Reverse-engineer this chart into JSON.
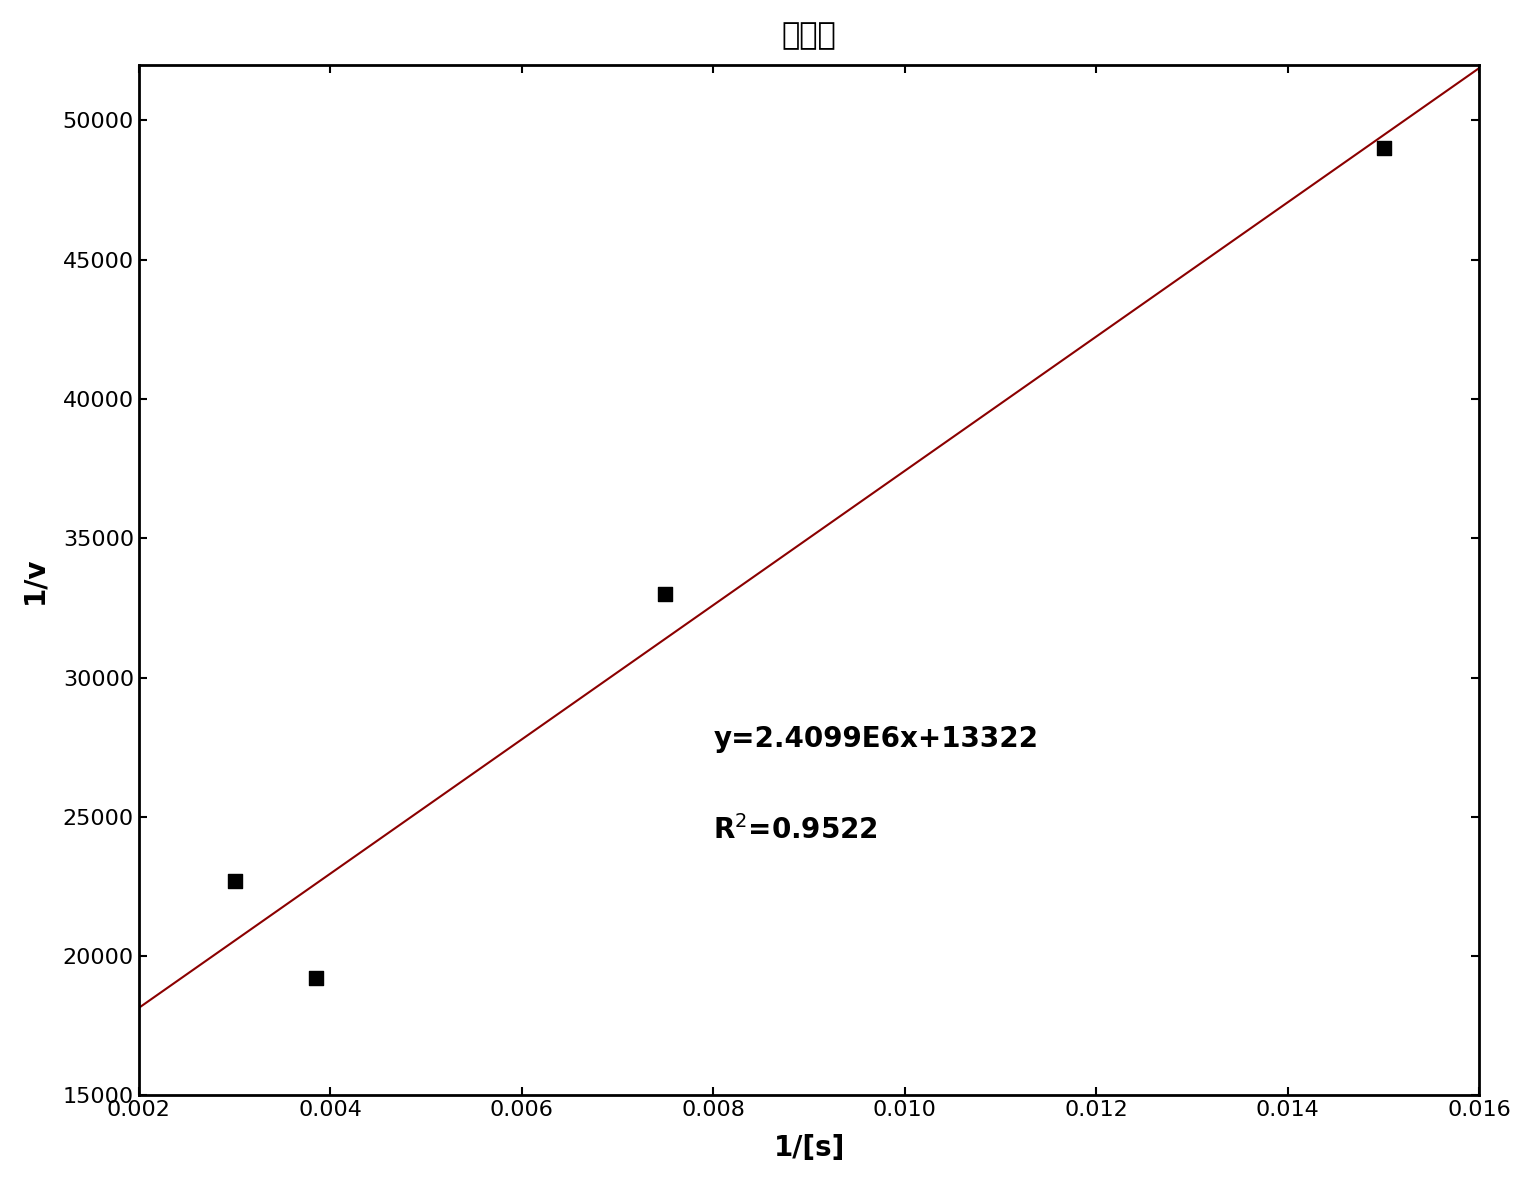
{
  "title": "突变型",
  "xlabel": "1/[s]",
  "ylabel": "1/v",
  "x_data": [
    0.003,
    0.00385,
    0.0075,
    0.015
  ],
  "y_data": [
    22700,
    19200,
    33000,
    49000
  ],
  "slope": 2409900,
  "intercept": 13322,
  "r_squared": 0.9522,
  "line_x_start": 0.002,
  "line_x_end": 0.016,
  "xlim": [
    0.002,
    0.016
  ],
  "ylim": [
    15000,
    52000
  ],
  "xticks": [
    0.002,
    0.004,
    0.006,
    0.008,
    0.01,
    0.012,
    0.014,
    0.016
  ],
  "yticks": [
    15000,
    20000,
    25000,
    30000,
    35000,
    40000,
    45000,
    50000
  ],
  "equation_text": "y=2.4099E6x+13322",
  "r2_text": "R²=0.9522",
  "line_color": "#8B0000",
  "marker_color": "#000000",
  "background_color": "#ffffff",
  "title_fontsize": 22,
  "label_fontsize": 20,
  "tick_fontsize": 16,
  "annotation_fontsize": 20,
  "marker_size": 10,
  "line_width": 1.5
}
